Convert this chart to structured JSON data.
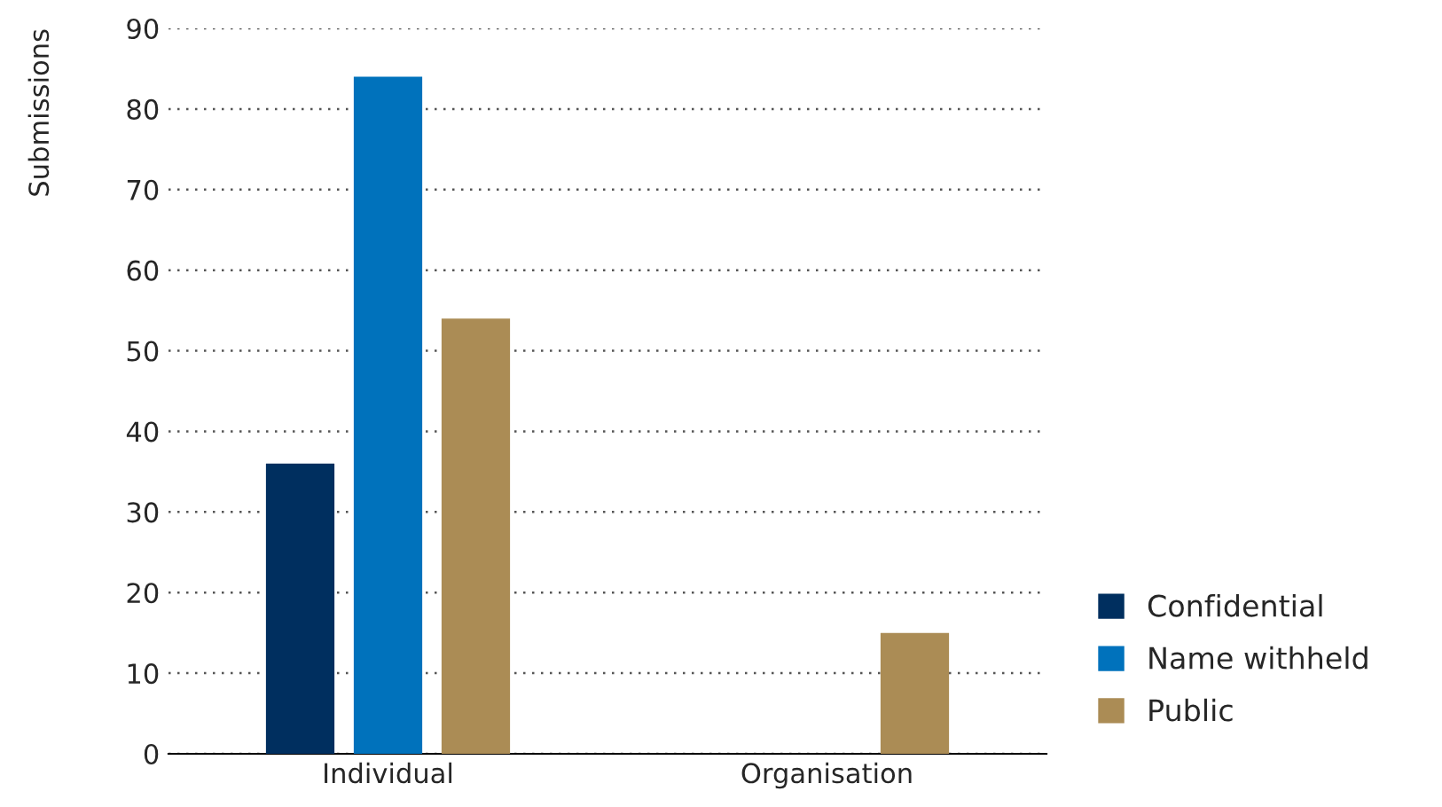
{
  "chart_data": {
    "type": "bar",
    "ylabel": "Submissions",
    "categories": [
      "Individual",
      "Organisation"
    ],
    "series": [
      {
        "name": "Confidential",
        "color": "#002f5f",
        "values": [
          36,
          null
        ]
      },
      {
        "name": "Name withheld",
        "color": "#0072bc",
        "values": [
          84,
          null
        ]
      },
      {
        "name": "Public",
        "color": "#ab8c55",
        "values": [
          54,
          15
        ]
      }
    ],
    "ylim": [
      0,
      90
    ],
    "yticks": [
      0,
      10,
      20,
      30,
      40,
      50,
      60,
      70,
      80,
      90
    ],
    "grid": "y",
    "legend": "bottom right"
  }
}
